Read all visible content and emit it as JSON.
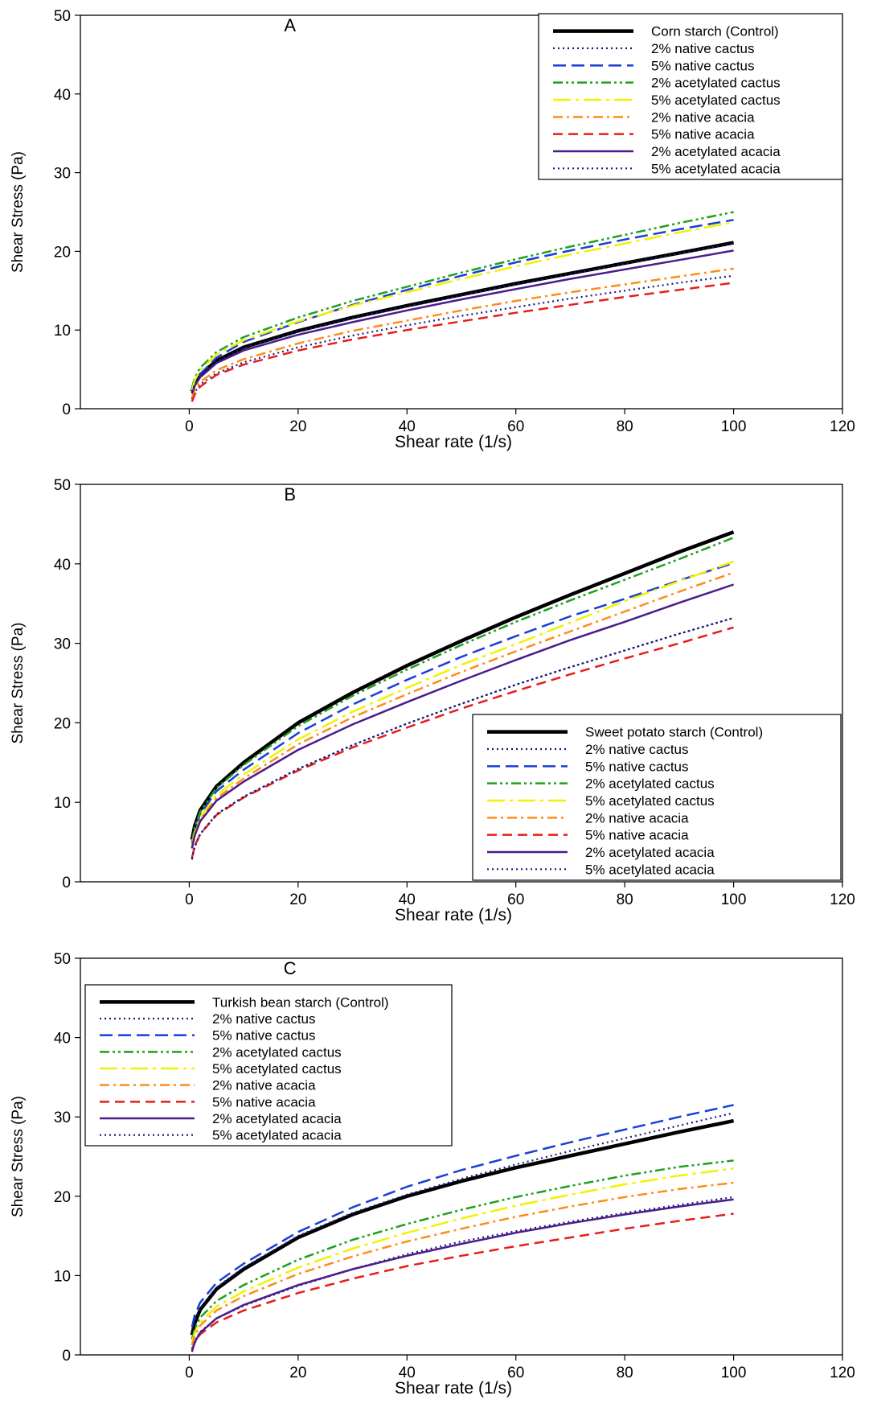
{
  "chart_data": [
    {
      "type": "line",
      "panel_label": "A",
      "xlabel": "Shear rate (1/s)",
      "ylabel": "Shear Stress (Pa)",
      "xlim": [
        -20,
        120
      ],
      "ylim": [
        0,
        50
      ],
      "xticks": [
        0,
        20,
        40,
        60,
        80,
        100,
        120
      ],
      "yticks": [
        0,
        10,
        20,
        30,
        40,
        50
      ],
      "legend_position": "top-right",
      "series": [
        {
          "name": "Corn starch (Control)",
          "color": "#000000",
          "dash": "solid-thick",
          "x": [
            0.5,
            1,
            2,
            5,
            10,
            20,
            30,
            40,
            50,
            60,
            70,
            80,
            90,
            100
          ],
          "y": [
            2.2,
            3.2,
            4.3,
            6.1,
            7.8,
            9.9,
            11.6,
            13.1,
            14.5,
            15.9,
            17.2,
            18.5,
            19.8,
            21.1
          ]
        },
        {
          "name": "2% native cactus",
          "color": "#1a1a7a",
          "dash": "dot",
          "x": [
            0.5,
            1,
            2,
            5,
            10,
            20,
            30,
            40,
            50,
            60,
            70,
            80,
            90,
            100
          ],
          "y": [
            1.2,
            2.1,
            3.1,
            4.5,
            5.9,
            7.8,
            9.3,
            10.6,
            11.8,
            12.9,
            14.0,
            15.0,
            16.0,
            16.9
          ]
        },
        {
          "name": "5% native cactus",
          "color": "#1a3fd6",
          "dash": "long-dash",
          "x": [
            0.5,
            1,
            2,
            5,
            10,
            20,
            30,
            40,
            50,
            60,
            70,
            80,
            90,
            100
          ],
          "y": [
            2.0,
            3.1,
            4.4,
            6.5,
            8.5,
            11.0,
            13.2,
            15.1,
            16.9,
            18.6,
            20.1,
            21.5,
            22.8,
            24.0
          ]
        },
        {
          "name": "2% acetylated cactus",
          "color": "#1ea01e",
          "dash": "dash-dot-dot",
          "x": [
            0.5,
            1,
            2,
            5,
            10,
            20,
            30,
            40,
            50,
            60,
            70,
            80,
            90,
            100
          ],
          "y": [
            2.6,
            3.9,
            5.2,
            7.2,
            9.1,
            11.6,
            13.7,
            15.5,
            17.3,
            19.0,
            20.6,
            22.1,
            23.6,
            25.0
          ]
        },
        {
          "name": "5% acetylated cactus",
          "color": "#f2f200",
          "dash": "long-dash-dot",
          "x": [
            0.5,
            1,
            2,
            5,
            10,
            20,
            30,
            40,
            50,
            60,
            70,
            80,
            90,
            100
          ],
          "y": [
            2.3,
            3.6,
            4.9,
            6.9,
            8.7,
            11.1,
            13.1,
            14.8,
            16.5,
            18.1,
            19.6,
            21.0,
            22.4,
            23.7
          ]
        },
        {
          "name": "2% native acacia",
          "color": "#ff8c1a",
          "dash": "dash-dot",
          "x": [
            0.5,
            1,
            2,
            5,
            10,
            20,
            30,
            40,
            50,
            60,
            70,
            80,
            90,
            100
          ],
          "y": [
            1.4,
            2.4,
            3.4,
            4.9,
            6.3,
            8.3,
            9.9,
            11.2,
            12.5,
            13.7,
            14.8,
            15.8,
            16.8,
            17.8
          ]
        },
        {
          "name": "5% native acacia",
          "color": "#e81c1c",
          "dash": "dash",
          "x": [
            0.5,
            1,
            2,
            5,
            10,
            20,
            30,
            40,
            50,
            60,
            70,
            80,
            90,
            100
          ],
          "y": [
            0.9,
            1.8,
            2.8,
            4.3,
            5.6,
            7.4,
            8.8,
            10.0,
            11.1,
            12.2,
            13.2,
            14.2,
            15.1,
            16.0
          ]
        },
        {
          "name": "2% acetylated acacia",
          "color": "#4b1c8c",
          "dash": "solid",
          "x": [
            0.5,
            1,
            2,
            5,
            10,
            20,
            30,
            40,
            50,
            60,
            70,
            80,
            90,
            100
          ],
          "y": [
            1.9,
            2.9,
            4.0,
            5.8,
            7.4,
            9.4,
            11.0,
            12.5,
            13.9,
            15.2,
            16.5,
            17.7,
            18.9,
            20.1
          ]
        },
        {
          "name": "5% acetylated acacia",
          "color": "#1a1a7a",
          "dash": "dot",
          "x": [
            0.5,
            1,
            2,
            5,
            10,
            20,
            30,
            40,
            50,
            60,
            70,
            80,
            90,
            100
          ],
          "y": [
            2.1,
            3.1,
            4.2,
            6.0,
            7.7,
            9.8,
            11.5,
            13.0,
            14.4,
            15.8,
            17.1,
            18.4,
            19.7,
            21.0
          ]
        }
      ]
    },
    {
      "type": "line",
      "panel_label": "B",
      "xlabel": "Shear rate (1/s)",
      "ylabel": "Shear Stress (Pa)",
      "xlim": [
        -20,
        120
      ],
      "ylim": [
        0,
        50
      ],
      "xticks": [
        0,
        20,
        40,
        60,
        80,
        100,
        120
      ],
      "yticks": [
        0,
        10,
        20,
        30,
        40,
        50
      ],
      "legend_position": "bottom-right",
      "series": [
        {
          "name": "Sweet potato starch (Control)",
          "color": "#000000",
          "dash": "solid-thick",
          "x": [
            0.5,
            1,
            2,
            5,
            10,
            20,
            30,
            40,
            50,
            60,
            70,
            80,
            90,
            100
          ],
          "y": [
            5.3,
            7.0,
            9.0,
            12.0,
            15.0,
            20.0,
            23.8,
            27.2,
            30.3,
            33.3,
            36.1,
            38.8,
            41.5,
            44.0
          ]
        },
        {
          "name": "2% native cactus",
          "color": "#1a1a7a",
          "dash": "dot",
          "x": [
            0.5,
            1,
            2,
            5,
            10,
            20,
            30,
            40,
            50,
            60,
            70,
            80,
            90,
            100
          ],
          "y": [
            2.8,
            4.4,
            6.0,
            8.5,
            10.7,
            14.2,
            17.2,
            19.9,
            22.4,
            24.8,
            27.0,
            29.1,
            31.2,
            33.2
          ]
        },
        {
          "name": "5% native cactus",
          "color": "#1a3fd6",
          "dash": "long-dash",
          "x": [
            0.5,
            1,
            2,
            5,
            10,
            20,
            30,
            40,
            50,
            60,
            70,
            80,
            90,
            100
          ],
          "y": [
            4.8,
            6.6,
            8.5,
            11.4,
            14.1,
            18.7,
            22.3,
            25.4,
            28.3,
            30.9,
            33.4,
            35.6,
            37.9,
            40.1
          ]
        },
        {
          "name": "2% acetylated cactus",
          "color": "#1ea01e",
          "dash": "dash-dot-dot",
          "x": [
            0.5,
            1,
            2,
            5,
            10,
            20,
            30,
            40,
            50,
            60,
            70,
            80,
            90,
            100
          ],
          "y": [
            5.0,
            6.8,
            8.8,
            11.8,
            14.7,
            19.6,
            23.4,
            26.7,
            29.8,
            32.7,
            35.4,
            38.0,
            40.6,
            43.3
          ]
        },
        {
          "name": "5% acetylated cactus",
          "color": "#f2f200",
          "dash": "long-dash-dot",
          "x": [
            0.5,
            1,
            2,
            5,
            10,
            20,
            30,
            40,
            50,
            60,
            70,
            80,
            90,
            100
          ],
          "y": [
            4.5,
            6.2,
            8.1,
            10.9,
            13.5,
            17.9,
            21.4,
            24.4,
            27.3,
            29.9,
            32.6,
            35.3,
            37.8,
            40.3
          ]
        },
        {
          "name": "2% native acacia",
          "color": "#ff8c1a",
          "dash": "dash-dot",
          "x": [
            0.5,
            1,
            2,
            5,
            10,
            20,
            30,
            40,
            50,
            60,
            70,
            80,
            90,
            100
          ],
          "y": [
            4.3,
            6.0,
            7.8,
            10.5,
            13.0,
            17.3,
            20.7,
            23.6,
            26.4,
            29.0,
            31.5,
            34.0,
            36.5,
            38.9
          ]
        },
        {
          "name": "5% native acacia",
          "color": "#e81c1c",
          "dash": "dash",
          "x": [
            0.5,
            1,
            2,
            5,
            10,
            20,
            30,
            40,
            50,
            60,
            70,
            80,
            90,
            100
          ],
          "y": [
            3.0,
            4.5,
            6.0,
            8.4,
            10.6,
            14.0,
            16.9,
            19.4,
            21.8,
            24.0,
            26.1,
            28.1,
            30.0,
            32.0
          ]
        },
        {
          "name": "2% acetylated acacia",
          "color": "#4b1c8c",
          "dash": "solid",
          "x": [
            0.5,
            1,
            2,
            5,
            10,
            20,
            30,
            40,
            50,
            60,
            70,
            80,
            90,
            100
          ],
          "y": [
            4.2,
            5.8,
            7.6,
            10.2,
            12.6,
            16.6,
            19.8,
            22.6,
            25.3,
            27.9,
            30.4,
            32.7,
            35.1,
            37.4
          ]
        },
        {
          "name": "5% acetylated acacia",
          "color": "#1a1a7a",
          "dash": "dot",
          "x": [
            0.5,
            1,
            2,
            5,
            10,
            20,
            30,
            40,
            50,
            60,
            70,
            80,
            90,
            100
          ],
          "y": [
            2.9,
            4.4,
            6.0,
            8.5,
            10.7,
            14.2,
            17.2,
            19.9,
            22.4,
            24.8,
            27.0,
            29.1,
            31.2,
            33.2
          ]
        }
      ]
    },
    {
      "type": "line",
      "panel_label": "C",
      "xlabel": "Shear rate (1/s)",
      "ylabel": "Shear Stress (Pa)",
      "xlim": [
        -20,
        120
      ],
      "ylim": [
        0,
        50
      ],
      "xticks": [
        0,
        20,
        40,
        60,
        80,
        100,
        120
      ],
      "yticks": [
        0,
        10,
        20,
        30,
        40,
        50
      ],
      "legend_position": "top-left",
      "series": [
        {
          "name": "Turkish bean starch (Control)",
          "color": "#000000",
          "dash": "solid-thick",
          "x": [
            0.5,
            1,
            2,
            5,
            10,
            20,
            30,
            40,
            50,
            60,
            70,
            80,
            90,
            100
          ],
          "y": [
            2.5,
            4.0,
            5.7,
            8.3,
            10.8,
            14.8,
            17.7,
            20.0,
            21.9,
            23.6,
            25.1,
            26.6,
            28.1,
            29.5
          ]
        },
        {
          "name": "2% native cactus",
          "color": "#1a1a7a",
          "dash": "dot",
          "x": [
            0.5,
            1,
            2,
            5,
            10,
            20,
            30,
            40,
            50,
            60,
            70,
            80,
            90,
            100
          ],
          "y": [
            0.8,
            1.7,
            2.9,
            4.6,
            6.2,
            8.7,
            10.8,
            12.7,
            14.3,
            15.6,
            16.8,
            17.9,
            18.9,
            19.9
          ]
        },
        {
          "name": "5% native cactus",
          "color": "#1a3fd6",
          "dash": "long-dash",
          "x": [
            0.5,
            1,
            2,
            5,
            10,
            20,
            30,
            40,
            50,
            60,
            70,
            80,
            90,
            100
          ],
          "y": [
            3.5,
            5.0,
            6.6,
            9.1,
            11.5,
            15.5,
            18.6,
            21.2,
            23.3,
            25.1,
            26.8,
            28.4,
            30.0,
            31.5
          ]
        },
        {
          "name": "2% acetylated cactus",
          "color": "#1ea01e",
          "dash": "dash-dot-dot",
          "x": [
            0.5,
            1,
            2,
            5,
            10,
            20,
            30,
            40,
            50,
            60,
            70,
            80,
            90,
            100
          ],
          "y": [
            2.0,
            3.3,
            4.7,
            6.8,
            8.8,
            12.0,
            14.5,
            16.5,
            18.3,
            19.9,
            21.3,
            22.6,
            23.7,
            24.5
          ]
        },
        {
          "name": "5% acetylated cactus",
          "color": "#f2f200",
          "dash": "long-dash-dot",
          "x": [
            0.5,
            1,
            2,
            5,
            10,
            20,
            30,
            40,
            50,
            60,
            70,
            80,
            90,
            100
          ],
          "y": [
            1.5,
            2.8,
            4.1,
            6.1,
            8.0,
            11.0,
            13.4,
            15.4,
            17.2,
            18.8,
            20.2,
            21.5,
            22.6,
            23.5
          ]
        },
        {
          "name": "2% native acacia",
          "color": "#ff8c1a",
          "dash": "dash-dot",
          "x": [
            0.5,
            1,
            2,
            5,
            10,
            20,
            30,
            40,
            50,
            60,
            70,
            80,
            90,
            100
          ],
          "y": [
            1.2,
            2.4,
            3.7,
            5.6,
            7.4,
            10.2,
            12.4,
            14.3,
            15.9,
            17.4,
            18.7,
            19.9,
            20.9,
            21.7
          ]
        },
        {
          "name": "5% native acacia",
          "color": "#e81c1c",
          "dash": "dash",
          "x": [
            0.5,
            1,
            2,
            5,
            10,
            20,
            30,
            40,
            50,
            60,
            70,
            80,
            90,
            100
          ],
          "y": [
            0.6,
            1.5,
            2.6,
            4.1,
            5.6,
            7.8,
            9.6,
            11.2,
            12.5,
            13.7,
            14.8,
            15.9,
            16.9,
            17.8
          ]
        },
        {
          "name": "2% acetylated acacia",
          "color": "#4b1c8c",
          "dash": "solid",
          "x": [
            0.5,
            1,
            2,
            5,
            10,
            20,
            30,
            40,
            50,
            60,
            70,
            80,
            90,
            100
          ],
          "y": [
            0.4,
            1.6,
            2.8,
            4.6,
            6.3,
            8.8,
            10.8,
            12.5,
            14.0,
            15.4,
            16.6,
            17.7,
            18.7,
            19.6
          ]
        },
        {
          "name": "5% acetylated acacia",
          "color": "#1a1a7a",
          "dash": "dot",
          "x": [
            0.5,
            1,
            2,
            5,
            10,
            20,
            30,
            40,
            50,
            60,
            70,
            80,
            90,
            100
          ],
          "y": [
            2.7,
            4.2,
            5.9,
            8.5,
            11.0,
            15.0,
            17.9,
            20.2,
            22.2,
            24.0,
            25.7,
            27.3,
            28.9,
            30.5
          ]
        }
      ]
    }
  ]
}
